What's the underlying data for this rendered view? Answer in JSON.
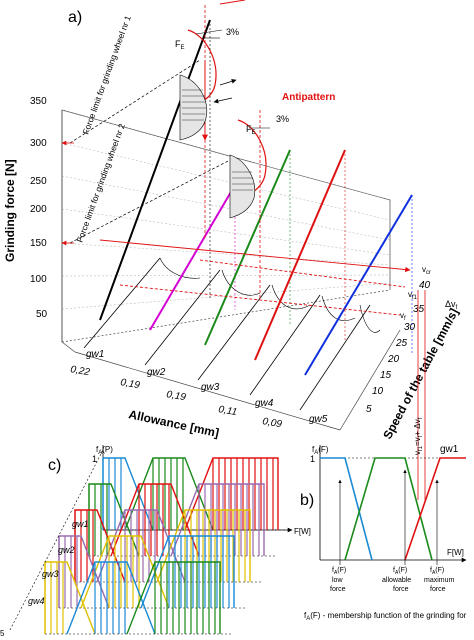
{
  "panel_a": {
    "label": "a)",
    "y_axis_title": "Grinding force [N]",
    "y_ticks": [
      "350",
      "300",
      "250",
      "200",
      "150",
      "100",
      "50"
    ],
    "x_axis_title": "Allowance [mm]",
    "x_ticks": [
      "0,22",
      "0,19",
      "0,19",
      "0,11",
      "0,09"
    ],
    "z_axis_title": "Speed of the table [mm/s]",
    "z_ticks": [
      "40",
      "35",
      "30",
      "25",
      "20",
      "15",
      "10",
      "5"
    ],
    "wheels": [
      "gw1",
      "gw2",
      "gw3",
      "gw4",
      "gw5"
    ],
    "force_limit_1": "Force limit for grinding wheel nr 1",
    "force_limit_2": "Force limit for grinding wheel nr 2",
    "antipattern": "Antipattern",
    "pct1": "3%",
    "pct2": "3%",
    "fe_label": "F",
    "fe_sub": "E",
    "fe2_sub": "E",
    "v_cr": "v",
    "v_cr_sub": "cr",
    "v_f1": "v",
    "v_f1_sub": "f1",
    "v_f": "v",
    "v_f_sub": "f",
    "delta_v": "Δv",
    "delta_v_sub": "f",
    "vertical_v": "v",
    "vertical_v_sub": "f1",
    "vertical_rest": "=v",
    "vertical_v2_sub": "f",
    "vertical_plus": "+ Δv",
    "vertical_plus_sub": "f",
    "series_colors": [
      "#000000",
      "#d400d4",
      "#1a8a1a",
      "#e01010",
      "#1030e0"
    ]
  },
  "panel_c": {
    "label": "c)",
    "y_label": "f",
    "y_sub": "A",
    "y_paren": "(P)",
    "tick_one": "1",
    "x_label": "F[W]",
    "layers": [
      "gw1",
      "gw2",
      "gw3",
      "gw4"
    ],
    "corner": "5"
  },
  "panel_b": {
    "label": "b)",
    "y_label": "f",
    "y_sub": "A",
    "y_paren": "(F)",
    "tick_one": "1",
    "x_label": "F[W]",
    "curve_label": "gw1",
    "low_label": "f",
    "low_sub": "A",
    "low_paren": "(F)",
    "low_text_1": "low",
    "low_text_2": "force",
    "allow_label": "f",
    "allow_sub": "A",
    "allow_paren": "(F)",
    "allow_text_1": "allowable",
    "allow_text_2": "force",
    "max_label": "f",
    "max_sub": "A",
    "max_paren": "(F)",
    "max_text_1": "maximum",
    "max_text_2": "force"
  },
  "caption": {
    "prefix": "f",
    "sub": "A",
    "text": "(F) - membership function of the grinding for"
  }
}
